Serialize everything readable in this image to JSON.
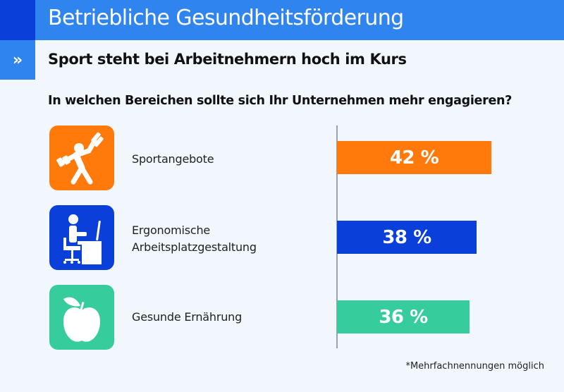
{
  "header": {
    "title": "Betriebliche Gesundheitsförderung",
    "subtitle_marker": "»",
    "subtitle": "Sport steht bei Arbeitnehmern hoch im Kurs"
  },
  "colors": {
    "header_dark": "#0a3fd9",
    "header_light": "#2f84ee",
    "orange": "#ff7a0a",
    "blue": "#0a3fd9",
    "green": "#37cc9c"
  },
  "footnote": "*Mehrfachnennungen möglich",
  "chart_data": {
    "type": "bar",
    "orientation": "horizontal",
    "title": "In welchen Bereichen sollte sich Ihr Unternehmen mehr engagieren?",
    "categories": [
      "Sportangebote",
      "Ergonomische Arbeitsplatzgestaltung",
      "Gesunde Ernährung"
    ],
    "category_lines": [
      [
        "Sportangebote"
      ],
      [
        "Ergonomische",
        "Arbeitsplatzgestaltung"
      ],
      [
        "Gesunde Ernährung"
      ]
    ],
    "icons": [
      "dumbbell-exercise-icon",
      "desk-worker-icon",
      "apple-icon"
    ],
    "values": [
      42,
      38,
      36
    ],
    "value_labels": [
      "42 %",
      "38 %",
      "36 %"
    ],
    "bar_colors": [
      "#ff7a0a",
      "#0a3fd9",
      "#37cc9c"
    ],
    "unit": "%",
    "xlim": [
      0,
      42
    ],
    "grid": false,
    "legend": "none"
  }
}
